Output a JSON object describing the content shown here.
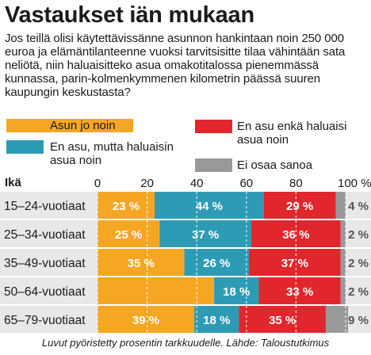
{
  "title": "Vastaukset iän mukaan",
  "question": "Jos teillä olisi käytettävissänne asunnon hankintaan noin 250 000 euroa ja elämäntilanteenne vuoksi tarvitsisitte tilaa vähintään sata neliötä, niin haluaisitteko asua omakotitalossa pienemmässä kunnassa, parin-kolmenkymmenen kilometrin päässä suuren kaupungin keskustasta?",
  "footnote": "Luvut pyöristetty prosentin tarkkuudelle. Lähde: Taloustutkimus",
  "colors": {
    "orange": "#F5A623",
    "teal": "#2E9BB5",
    "red": "#E2262D",
    "gray": "#999999",
    "row_band": "#E8E8E8"
  },
  "chart_data": {
    "type": "bar",
    "orientation": "horizontal",
    "stacked": true,
    "ylabel": "Ikä",
    "xlim": [
      0,
      100
    ],
    "x_ticks": [
      "0",
      "20",
      "40",
      "60",
      "80",
      "100 %"
    ],
    "grid": true,
    "categories": [
      "15–24-vuotiaat",
      "25–34-vuotiaat",
      "35–49-vuotiaat",
      "50–64-vuotiaat",
      "65–79-vuotiaat"
    ],
    "series": [
      {
        "name": "Asun jo noin",
        "color": "#F5A623",
        "values": [
          23,
          25,
          35,
          47,
          39
        ]
      },
      {
        "name": "En asu, mutta haluaisin asua noin",
        "color": "#2E9BB5",
        "values": [
          44,
          37,
          26,
          18,
          18
        ]
      },
      {
        "name": "En asu enkä haluaisi asua noin",
        "color": "#E2262D",
        "values": [
          29,
          36,
          37,
          33,
          35
        ]
      },
      {
        "name": "Ei osaa sanoa",
        "color": "#999999",
        "values": [
          4,
          2,
          2,
          2,
          9
        ]
      }
    ],
    "data_labels": [
      [
        "23 %",
        "44 %",
        "29 %",
        "4 %"
      ],
      [
        "25 %",
        "37 %",
        "36 %",
        "2 %"
      ],
      [
        "35 %",
        "26 %",
        "37 %",
        "2 %"
      ],
      [
        "",
        "18 %",
        "33 %",
        "2 %"
      ],
      [
        "39 %",
        "18 %",
        "35 %",
        "9 %"
      ]
    ],
    "legend": [
      {
        "label_lines": [
          "Asun jo noin"
        ],
        "color": "#F5A623"
      },
      {
        "label_lines": [
          "En asu, mutta haluaisin",
          "asua noin"
        ],
        "color": "#2E9BB5"
      },
      {
        "label_lines": [
          "En asu enkä haluaisi",
          "asua noin"
        ],
        "color": "#E2262D"
      },
      {
        "label_lines": [
          "Ei osaa sanoa"
        ],
        "color": "#999999"
      }
    ],
    "legend_placement": "top"
  }
}
